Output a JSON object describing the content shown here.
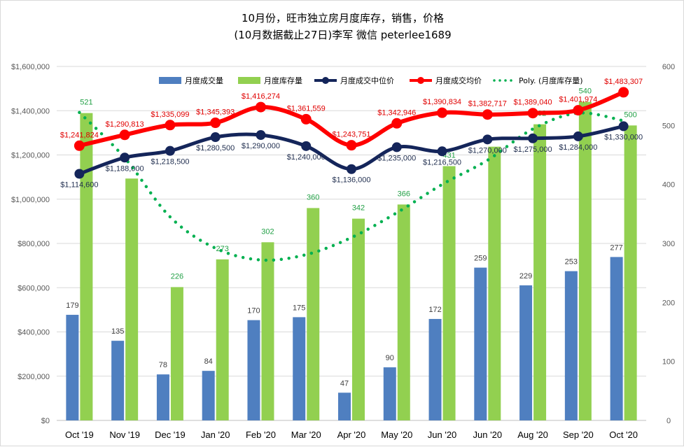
{
  "title": {
    "line1": "10月份，旺市独立房月度库存，销售，价格",
    "line2": "(10月数据截止27日)李军 微信 peterlee1689"
  },
  "chart_data": {
    "type": "bar",
    "categories": [
      "Oct '19",
      "Nov '19",
      "Dec '19",
      "Jan '20",
      "Feb '20",
      "Mar '20",
      "Apr '20",
      "May '20",
      "Jun '20",
      "Jun '20",
      "Aug '20",
      "Sep '20",
      "Oct '20"
    ],
    "left_axis": {
      "ylim": [
        0,
        1600000
      ],
      "ticks": [
        "$0",
        "$200,000",
        "$400,000",
        "$600,000",
        "$800,000",
        "$1,000,000",
        "$1,200,000",
        "$1,400,000",
        "$1,600,000"
      ]
    },
    "right_axis": {
      "ylim": [
        0,
        600
      ],
      "ticks": [
        "0",
        "100",
        "200",
        "300",
        "400",
        "500",
        "600"
      ]
    },
    "series": [
      {
        "name": "月度成交量",
        "kind": "bar",
        "axis": "right",
        "color": "#4f7fc0",
        "values": [
          179,
          135,
          78,
          84,
          170,
          175,
          47,
          90,
          172,
          259,
          229,
          253,
          277
        ],
        "labels": [
          "179",
          "135",
          "78",
          "84",
          "170",
          "175",
          "47",
          "90",
          "172",
          "259",
          "229",
          "253",
          "277"
        ]
      },
      {
        "name": "月度库存量",
        "kind": "bar",
        "axis": "right",
        "color": "#92d050",
        "values": [
          521,
          410,
          226,
          273,
          302,
          360,
          342,
          366,
          431,
          464,
          502,
          540,
          500
        ],
        "labels": [
          "521",
          "",
          "226",
          "273",
          "302",
          "360",
          "342",
          "366",
          "431",
          "",
          "502",
          "540",
          "500"
        ]
      },
      {
        "name": "月度成交中位价",
        "kind": "line",
        "axis": "left",
        "color": "#14255a",
        "values": [
          1114600,
          1188000,
          1218500,
          1280500,
          1290000,
          1240000,
          1136000,
          1235000,
          1216500,
          1270000,
          1275000,
          1284000,
          1330000
        ],
        "labels": [
          "$1,114,600",
          "$1,188,000",
          "$1,218,500",
          "$1,280,500",
          "$1,290,000",
          "$1,240,000",
          "$1,136,000",
          "$1,235,000",
          "$1,216,500",
          "$1,270,000",
          "$1,275,000",
          "$1,284,000",
          "$1,330,000"
        ]
      },
      {
        "name": "月度成交均价",
        "kind": "line",
        "axis": "left",
        "color": "#ff0000",
        "values": [
          1241824,
          1290813,
          1335099,
          1345393,
          1416274,
          1361559,
          1243751,
          1342946,
          1390834,
          1382717,
          1389040,
          1401974,
          1483307
        ],
        "labels": [
          "$1,241,824",
          "$1,290,813",
          "$1,335,099",
          "$1,345,393",
          "$1,416,274",
          "$1,361,559",
          "$1,243,751",
          "$1,342,946",
          "$1,390,834",
          "$1,382,717",
          "$1,389,040",
          "$1,401,974",
          "$1,483,307"
        ]
      },
      {
        "name": "Poly. (月度库存量)",
        "kind": "trend",
        "axis": "right",
        "color": "#00b050",
        "values": [
          522,
          445,
          345,
          292,
          272,
          281,
          310,
          352,
          400,
          441,
          494,
          521,
          508
        ]
      }
    ],
    "legend_position": "top",
    "grid": true
  }
}
